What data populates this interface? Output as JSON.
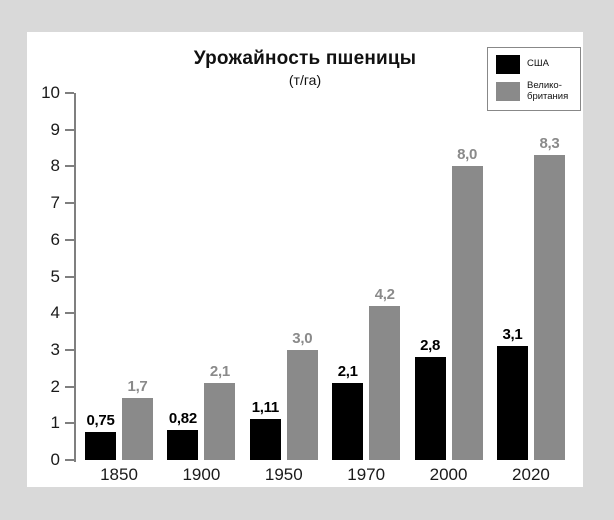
{
  "page": {
    "background_color": "#d9d9d9",
    "card_color": "#ffffff"
  },
  "chart": {
    "title": "Урожайность пшеницы",
    "subtitle": "(т/га)"
  },
  "legend": {
    "items": [
      {
        "label": "США",
        "color": "#000000"
      },
      {
        "label": "Велико-\nбритания",
        "color": "#8a8a8a"
      }
    ]
  },
  "chart_data": {
    "type": "bar",
    "title": "Урожайность пшеницы",
    "subtitle": "(т/га)",
    "categories": [
      "1850",
      "1900",
      "1950",
      "1970",
      "2000",
      "2020"
    ],
    "series": [
      {
        "name": "США",
        "color": "#000000",
        "label_color": "#000000",
        "values": [
          0.75,
          0.82,
          1.11,
          2.1,
          2.8,
          3.1
        ],
        "value_labels": [
          "0,75",
          "0,82",
          "1,11",
          "2,1",
          "2,8",
          "3,1"
        ]
      },
      {
        "name": "Великобритания",
        "color": "#8a8a8a",
        "label_color": "#8a8a8a",
        "values": [
          1.7,
          2.1,
          3.0,
          4.2,
          8.0,
          8.3
        ],
        "value_labels": [
          "1,7",
          "2,1",
          "3,0",
          "4,2",
          "8,0",
          "8,3"
        ]
      }
    ],
    "ylim": [
      0,
      10
    ],
    "ytick_step": 1,
    "ytick_labels": [
      "0",
      "1",
      "2",
      "3",
      "4",
      "5",
      "6",
      "7",
      "8",
      "9",
      "10"
    ],
    "grid": false,
    "legend_position": "top-right",
    "axis_color": "#7f7f7f"
  }
}
